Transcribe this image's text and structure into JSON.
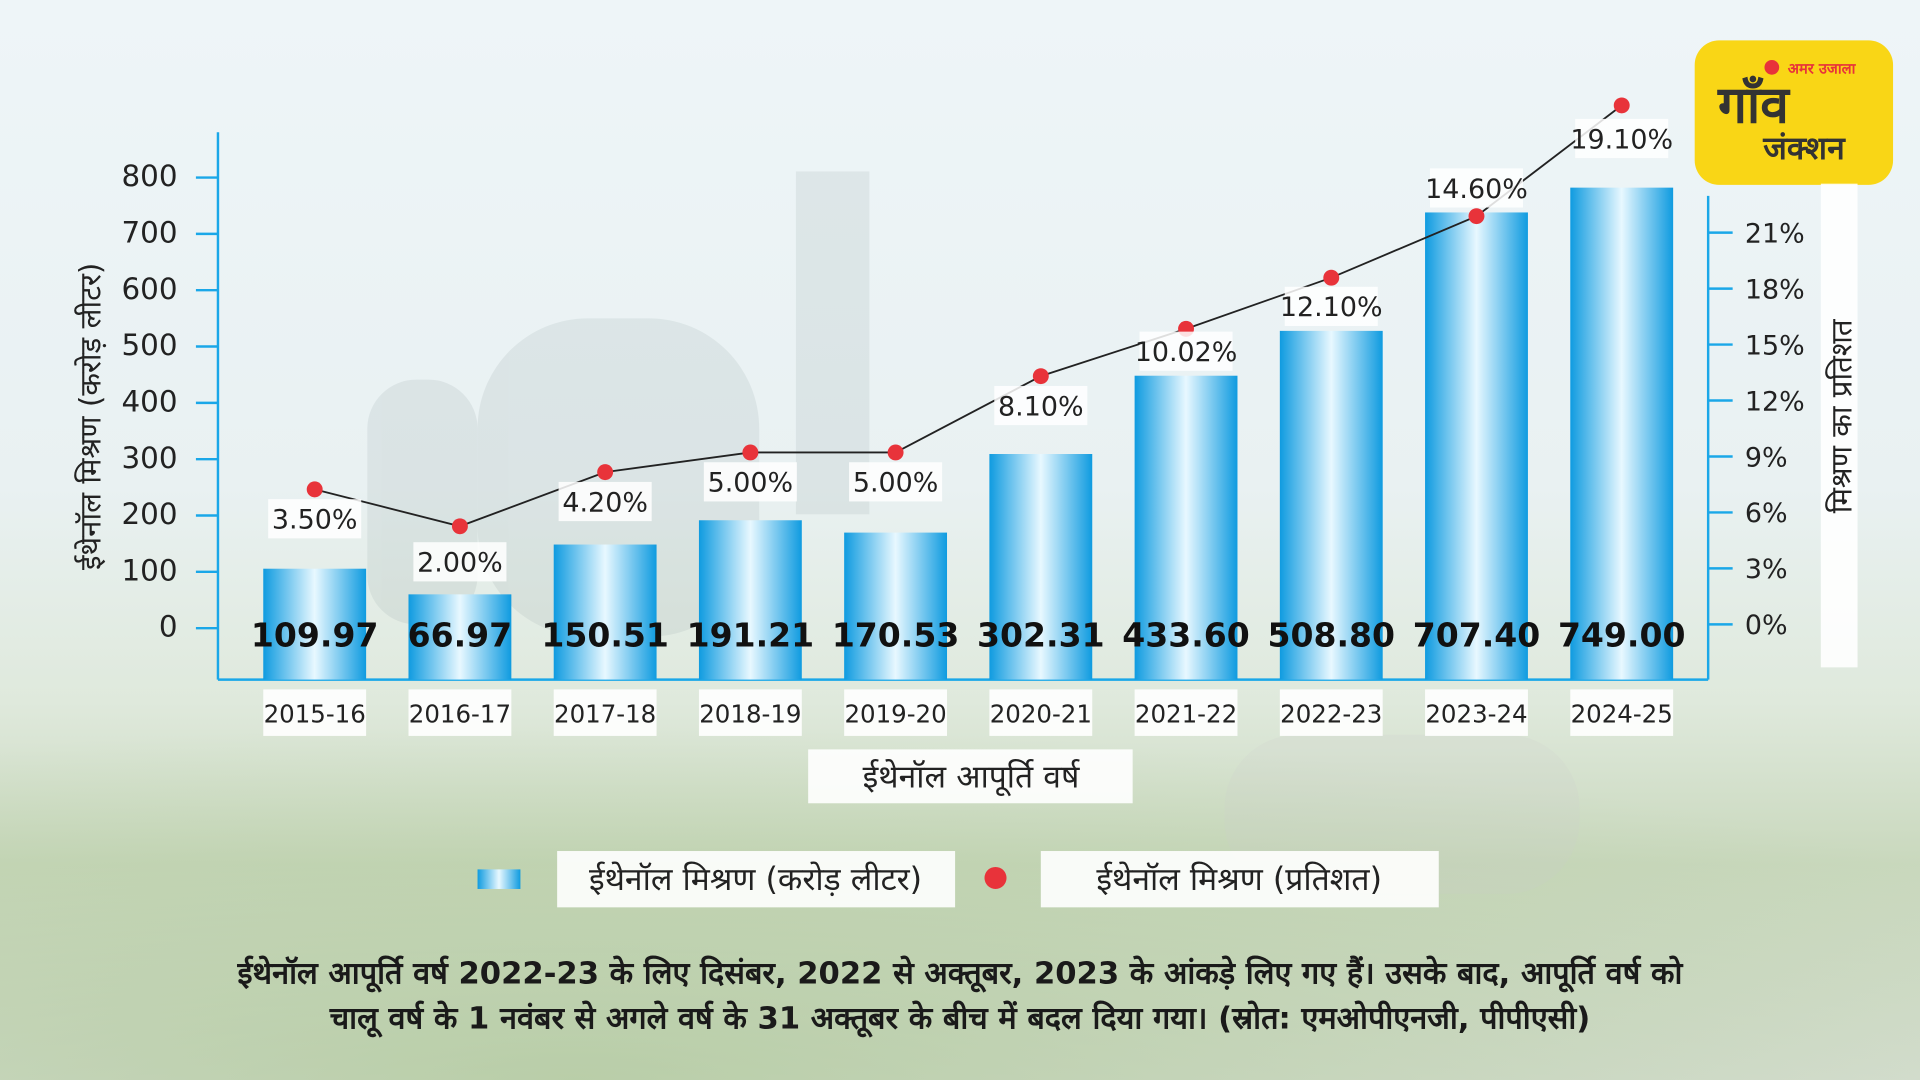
{
  "logo": {
    "brand": "अमर उजाला",
    "title_line1": "गाँव",
    "title_line2": "जंक्शन",
    "colors": {
      "bg": "#f9d616",
      "text": "#333333",
      "accent": "#e8333a"
    }
  },
  "chart_data": {
    "type": "bar+line",
    "title": "",
    "xlabel": "ईथेनॉल आपूर्ति वर्ष",
    "ylabel": "ईथेनॉल मिश्रण (करोड़ लीटर)",
    "y2label": "मिश्रण का प्रतिशत",
    "categories": [
      "2015-16",
      "2016-17",
      "2017-18",
      "2018-19",
      "2019-20",
      "2020-21",
      "2021-22",
      "2022-23",
      "2023-24",
      "2024-25"
    ],
    "series": [
      {
        "name": "ईथेनॉल मिश्रण (करोड़ लीटर)",
        "type": "bar",
        "axis": "left",
        "values": [
          109.97,
          66.97,
          150.51,
          191.21,
          170.53,
          302.31,
          433.6,
          508.8,
          707.4,
          749.0
        ],
        "labels": [
          "109.97",
          "66.97",
          "150.51",
          "191.21",
          "170.53",
          "302.31",
          "433.60",
          "508.80",
          "707.40",
          "749.00"
        ],
        "color": "#1aa7e8"
      },
      {
        "name": "ईथेनॉल मिश्रण (प्रतिशत)",
        "type": "line",
        "axis": "right",
        "values": [
          3.5,
          2.0,
          4.2,
          5.0,
          5.0,
          8.1,
          10.02,
          12.1,
          14.6,
          19.1
        ],
        "labels": [
          "3.50%",
          "2.00%",
          "4.20%",
          "5.00%",
          "5.00%",
          "8.10%",
          "10.02%",
          "12.10%",
          "14.60%",
          "19.10%"
        ],
        "color": "#e8333a"
      }
    ],
    "y_ticks": [
      "800",
      "700",
      "600",
      "500",
      "400",
      "300",
      "200",
      "100",
      "0"
    ],
    "y2_ticks": [
      "21%",
      "18%",
      "15%",
      "12%",
      "9%",
      "6%",
      "3%",
      "0%"
    ],
    "ylim": [
      0,
      800
    ],
    "y2lim": [
      0,
      21
    ],
    "grid": false,
    "legend_position": "bottom"
  },
  "footnote": {
    "line1": "ईथेनॉल आपूर्ति वर्ष 2022-23 के लिए दिसंबर, 2022 से अक्तूबर, 2023 के आंकड़े लिए गए हैं। उसके बाद, आपूर्ति वर्ष को",
    "line2": "चालू वर्ष के 1 नवंबर से अगले वर्ष के 31 अक्तूबर के बीच में बदल दिया गया। (स्रोत: एमओपीएनजी, पीपीएसी)"
  }
}
